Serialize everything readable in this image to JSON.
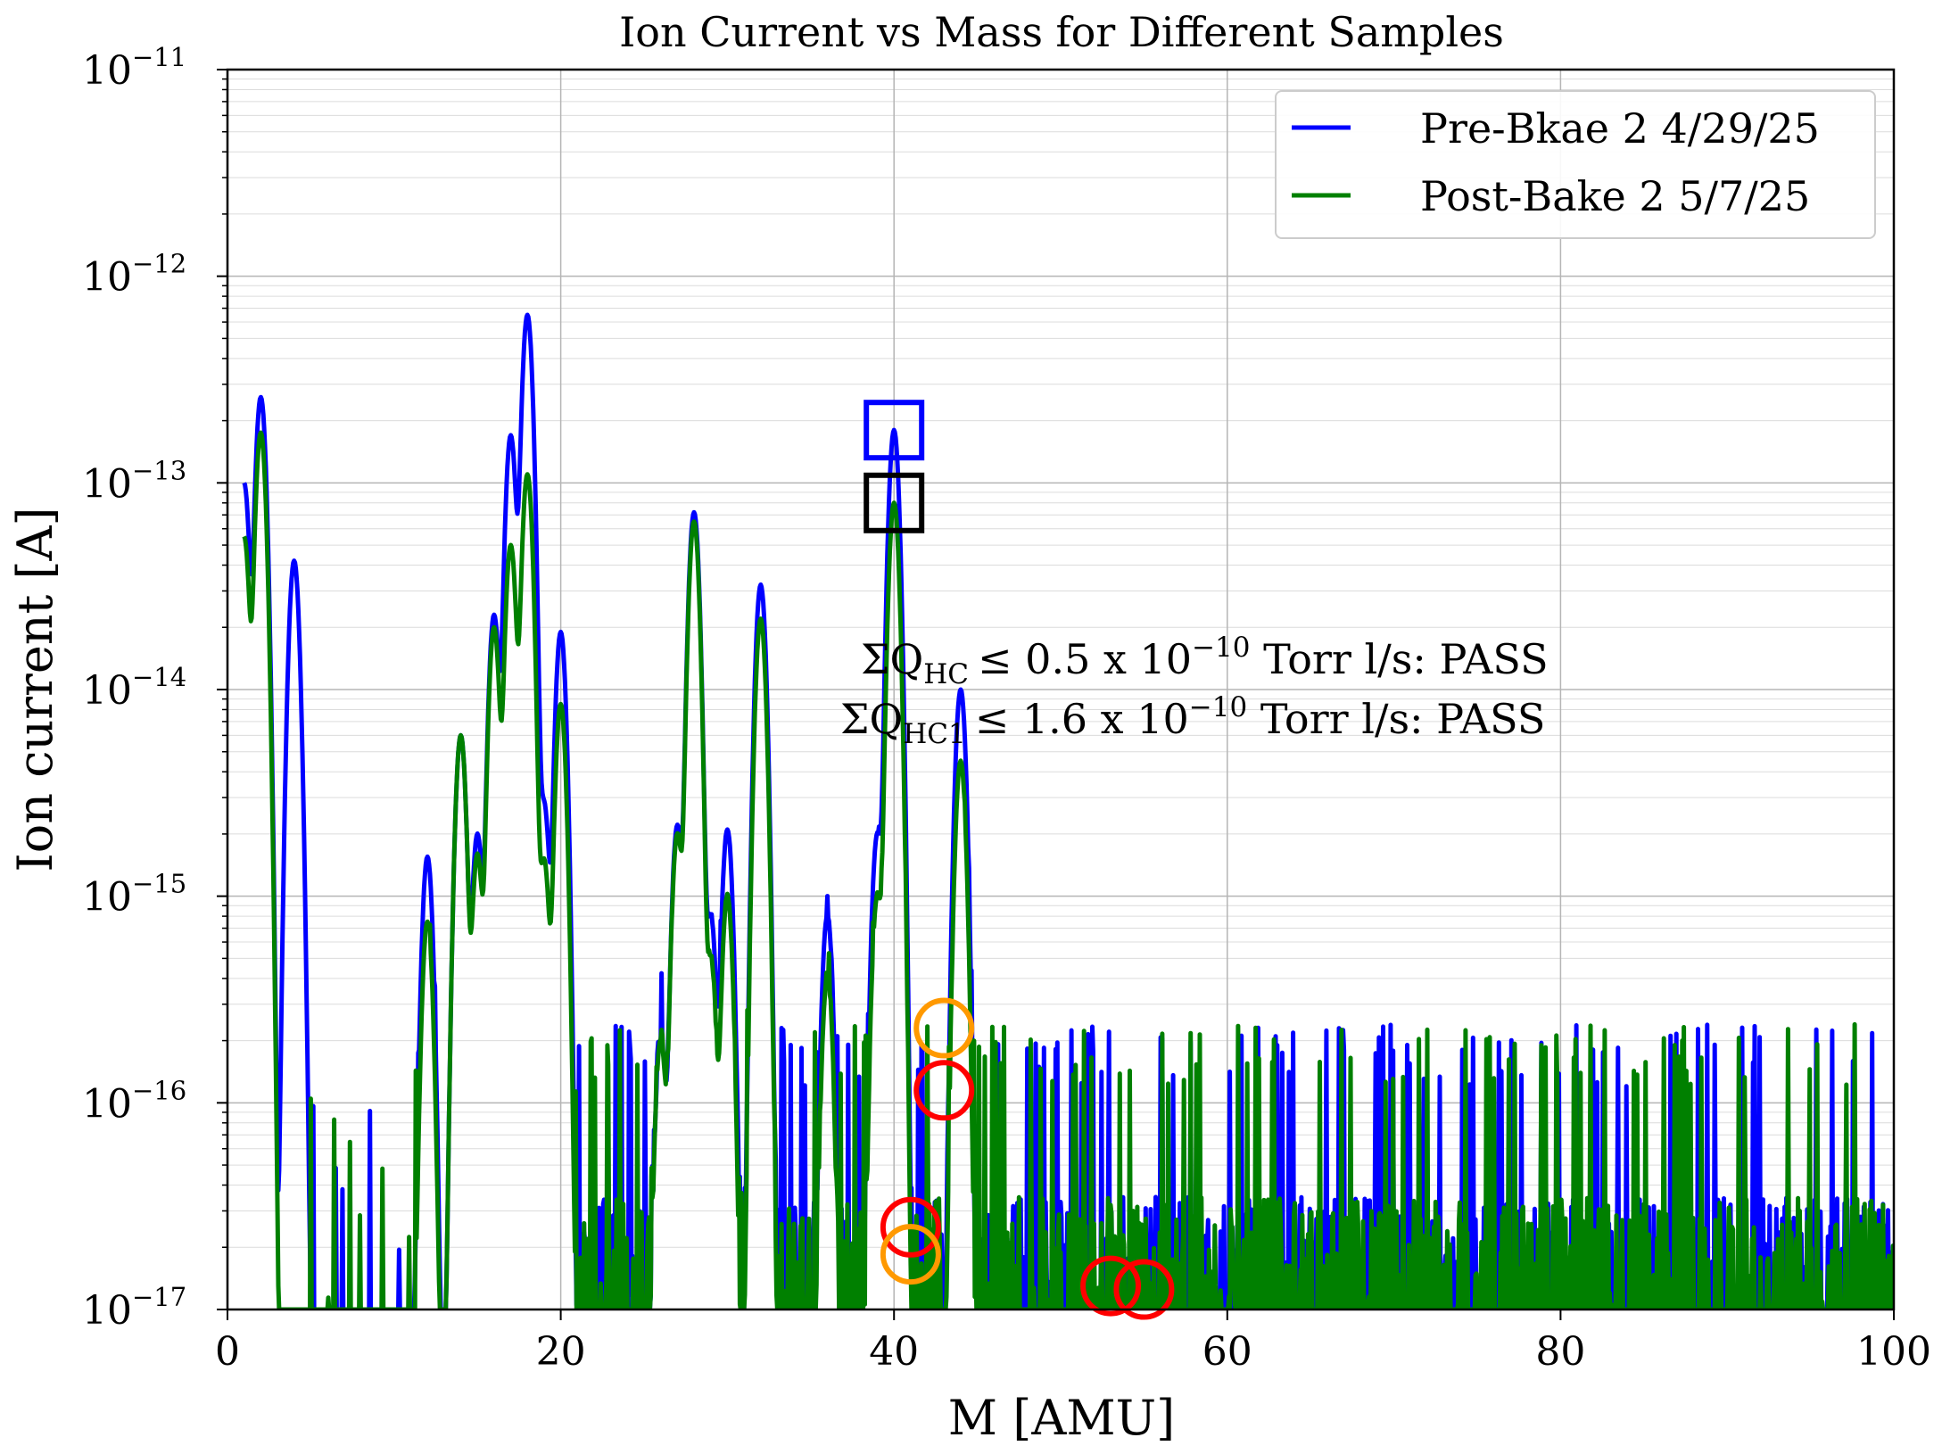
{
  "chart_data": {
    "type": "line",
    "title": "Ion Current vs Mass for Different Samples",
    "xlabel": "M [AMU]",
    "ylabel": "Ion current [A]",
    "xlim": [
      0,
      100
    ],
    "ylim": [
      1e-17,
      1e-11
    ],
    "yscale": "log",
    "grid": true,
    "legend_position": "top-right",
    "x_ticks": [
      "0",
      "20",
      "40",
      "60",
      "80",
      "100"
    ],
    "y_ticks": [
      {
        "base": "10",
        "exp": "−11",
        "value": 1e-11
      },
      {
        "base": "10",
        "exp": "−12",
        "value": 1e-12
      },
      {
        "base": "10",
        "exp": "−13",
        "value": 1e-13
      },
      {
        "base": "10",
        "exp": "−14",
        "value": 1e-14
      },
      {
        "base": "10",
        "exp": "−15",
        "value": 1e-15
      },
      {
        "base": "10",
        "exp": "−16",
        "value": 1e-16
      },
      {
        "base": "10",
        "exp": "−17",
        "value": 1e-17
      }
    ],
    "series": [
      {
        "name": "Pre-Bkae 2 4/29/25",
        "color": "#0000ff",
        "peaks": [
          {
            "m": 1,
            "v": 1e-13
          },
          {
            "m": 2,
            "v": 2.6e-13
          },
          {
            "m": 4,
            "v": 4.2e-14
          },
          {
            "m": 12,
            "v": 1.55e-15
          },
          {
            "m": 14,
            "v": 6e-15
          },
          {
            "m": 15,
            "v": 2e-15
          },
          {
            "m": 16,
            "v": 2.3e-14
          },
          {
            "m": 17,
            "v": 1.7e-13
          },
          {
            "m": 18,
            "v": 6.5e-13
          },
          {
            "m": 19,
            "v": 2.8e-15
          },
          {
            "m": 20,
            "v": 1.9e-14
          },
          {
            "m": 26,
            "v": 2e-16
          },
          {
            "m": 27,
            "v": 2.2e-15
          },
          {
            "m": 28,
            "v": 7.2e-14
          },
          {
            "m": 29,
            "v": 8e-16
          },
          {
            "m": 30,
            "v": 2.1e-15
          },
          {
            "m": 32,
            "v": 3.2e-14
          },
          {
            "m": 36,
            "v": 8e-16
          },
          {
            "m": 39,
            "v": 2e-15
          },
          {
            "m": 40,
            "v": 1.8e-13
          },
          {
            "m": 44,
            "v": 1e-14
          }
        ]
      },
      {
        "name": "Post-Bake 2 5/7/25",
        "color": "#008000",
        "peaks": [
          {
            "m": 1,
            "v": 5.5e-14
          },
          {
            "m": 2,
            "v": 1.75e-13
          },
          {
            "m": 12,
            "v": 7.5e-16
          },
          {
            "m": 14,
            "v": 6e-15
          },
          {
            "m": 15,
            "v": 1.6e-15
          },
          {
            "m": 16,
            "v": 2e-14
          },
          {
            "m": 17,
            "v": 5e-14
          },
          {
            "m": 18,
            "v": 1.1e-13
          },
          {
            "m": 19,
            "v": 1.5e-15
          },
          {
            "m": 20,
            "v": 8.5e-15
          },
          {
            "m": 26,
            "v": 2e-16
          },
          {
            "m": 27,
            "v": 2e-15
          },
          {
            "m": 28,
            "v": 6.5e-14
          },
          {
            "m": 29,
            "v": 5e-16
          },
          {
            "m": 30,
            "v": 1e-15
          },
          {
            "m": 32,
            "v": 2.2e-14
          },
          {
            "m": 36,
            "v": 4e-16
          },
          {
            "m": 39,
            "v": 1e-15
          },
          {
            "m": 40,
            "v": 8e-14
          },
          {
            "m": 44,
            "v": 4.5e-15
          }
        ]
      }
    ],
    "markers": [
      {
        "shape": "square",
        "color": "#0000ff",
        "m": 40,
        "v": 1.8e-13
      },
      {
        "shape": "square",
        "color": "#000000",
        "m": 40,
        "v": 8e-14
      },
      {
        "shape": "circle",
        "color": "#ff9900",
        "m": 43,
        "v": 2.3e-16
      },
      {
        "shape": "circle",
        "color": "#ff0000",
        "m": 43,
        "v": 1.15e-16
      },
      {
        "shape": "circle",
        "color": "#ff0000",
        "m": 41,
        "v": 2.5e-17
      },
      {
        "shape": "circle",
        "color": "#ff9900",
        "m": 41,
        "v": 1.85e-17
      },
      {
        "shape": "circle",
        "color": "#ff0000",
        "m": 53,
        "v": 1.3e-17
      },
      {
        "shape": "circle",
        "color": "#ff0000",
        "m": 55,
        "v": 1.25e-17
      }
    ],
    "annotations": [
      {
        "prefix": "ΣQ",
        "sub": "HC",
        "text_a": "≤  0.5 x 10",
        "exp": "−10",
        "text_b": " Torr l/s:  PASS"
      },
      {
        "prefix": "ΣQ",
        "sub": "HC1",
        "text_a": "≤  1.6 x 10",
        "exp": "−10",
        "text_b": " Torr l/s:  PASS"
      }
    ]
  }
}
